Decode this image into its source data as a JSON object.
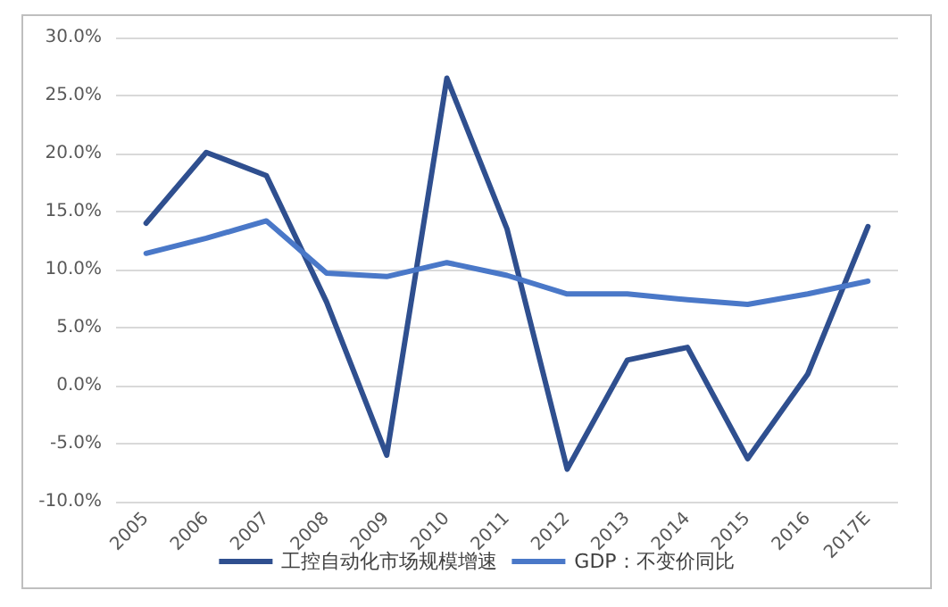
{
  "chart_data": {
    "type": "line",
    "categories": [
      "2005",
      "2006",
      "2007",
      "2008",
      "2009",
      "2010",
      "2011",
      "2012",
      "2013",
      "2014",
      "2015",
      "2016",
      "2017E"
    ],
    "series": [
      {
        "name": "工控自动化市场规模增速",
        "color": "#2f4f8f",
        "values": [
          14.0,
          20.1,
          18.1,
          7.2,
          -6.0,
          26.5,
          13.5,
          -7.2,
          2.2,
          3.3,
          -6.3,
          1.0,
          13.7
        ]
      },
      {
        "name": "GDP：不变价同比",
        "color": "#4a78c8",
        "values": [
          11.4,
          12.7,
          14.2,
          9.7,
          9.4,
          10.6,
          9.5,
          7.9,
          7.9,
          7.4,
          7.0,
          7.9,
          9.0
        ]
      }
    ],
    "ylim": [
      -10,
      30
    ],
    "yticks": [
      {
        "value": -10,
        "label": "-10.0%"
      },
      {
        "value": -5,
        "label": "-5.0%"
      },
      {
        "value": 0,
        "label": "0.0%"
      },
      {
        "value": 5,
        "label": "5.0%"
      },
      {
        "value": 10,
        "label": "10.0%"
      },
      {
        "value": 15,
        "label": "15.0%"
      },
      {
        "value": 20,
        "label": "20.0%"
      },
      {
        "value": 25,
        "label": "25.0%"
      },
      {
        "value": 30,
        "label": "30.0%"
      }
    ],
    "grid": "y",
    "legend": "bottom",
    "marker": "none",
    "line_style": "solid"
  }
}
